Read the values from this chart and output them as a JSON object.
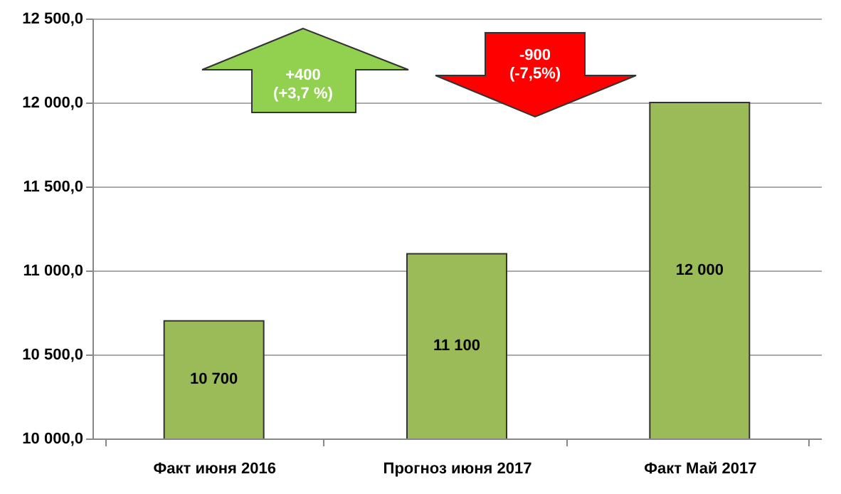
{
  "chart_data": {
    "type": "bar",
    "categories": [
      "Факт июня 2016",
      "Прогноз июня 2017",
      "Факт Май 2017"
    ],
    "values": [
      10700,
      11100,
      12000
    ],
    "color": "#9bbb59",
    "value_labels": [
      "10 700",
      "11 100",
      "12 000"
    ],
    "ylim": [
      10000,
      12500
    ],
    "yticks": [
      {
        "value": 10000,
        "label": "10 000,0"
      },
      {
        "value": 10500,
        "label": "10 500,0"
      },
      {
        "value": 11000,
        "label": "11 000,0"
      },
      {
        "value": 11500,
        "label": "11 500,0"
      },
      {
        "value": 12000,
        "label": "12 000,0"
      },
      {
        "value": 12500,
        "label": "12 500,0"
      }
    ],
    "grid": "y",
    "annotations": [
      "+400",
      "(+3,7 %)",
      "-900",
      "(-7,5%)"
    ]
  }
}
